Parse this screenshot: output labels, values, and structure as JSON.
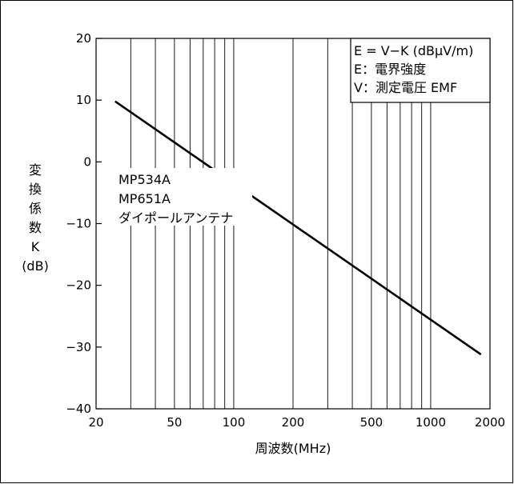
{
  "chart_data": {
    "type": "line",
    "title": "",
    "xlabel": "周波数(MHz)",
    "ylabel_lines": [
      "変",
      "換",
      "係",
      "数",
      "K",
      "(dB)"
    ],
    "x_scale": "log",
    "xlim": [
      20,
      2000
    ],
    "ylim": [
      -40,
      20
    ],
    "x_ticks": [
      20,
      50,
      100,
      200,
      500,
      1000,
      2000
    ],
    "x_tick_labels": [
      "20",
      "50",
      "100",
      "200",
      "500",
      "1000",
      "2000"
    ],
    "y_ticks": [
      20,
      10,
      0,
      -10,
      -20,
      -30,
      -40
    ],
    "y_tick_labels": [
      "20",
      "10",
      "0",
      "−10",
      "−20",
      "−30",
      "−40"
    ],
    "grid": {
      "vertical": true,
      "horizontal": false
    },
    "series": [
      {
        "x": [
          25,
          1800
        ],
        "y": [
          9.8,
          -31.2
        ]
      }
    ],
    "legend_box": {
      "placement": "top-right",
      "lines": [
        "E = V−K (dBμV/m)",
        "E：電界強度",
        "V：測定電圧 EMF"
      ]
    },
    "annotation": {
      "lines": [
        "MP534A",
        "MP651A",
        "ダイポールアンテナ"
      ]
    }
  }
}
